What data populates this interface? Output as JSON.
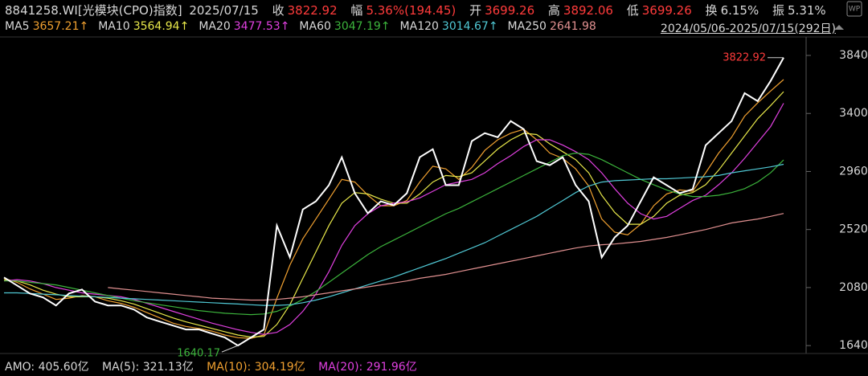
{
  "header": {
    "code": "8841258.WI[光模块(CPO)指数]",
    "date": "2025/07/15",
    "close_label": "收",
    "close": "3822.92",
    "change_label": "幅",
    "change": "5.36%(194.45)",
    "open_label": "开",
    "open": "3699.26",
    "high_label": "高",
    "high": "3892.06",
    "low_label": "低",
    "low": "3699.26",
    "turnover_label": "换",
    "turnover": "6.15%",
    "amplitude_label": "振",
    "amplitude": "5.31%",
    "range": "2024/05/06-2025/07/15(292日)"
  },
  "footer": {
    "amo": "AMO: 405.60亿",
    "ma5": "MA(5): 321.13亿",
    "ma10": "MA(10): 304.19亿",
    "ma20": "MA(20): 291.96亿"
  },
  "chart_data": {
    "type": "line",
    "ylim": [
      1580,
      3980
    ],
    "yticks": [
      1640,
      2080,
      2520,
      2960,
      3400,
      3840
    ],
    "series": [
      {
        "name": "收盘",
        "color": "#ffffff",
        "values": [
          2157,
          2096,
          2035,
          2005,
          1944,
          2035,
          2065,
          1974,
          1944,
          1944,
          1913,
          1853,
          1822,
          1792,
          1762,
          1762,
          1731,
          1701,
          1640.17,
          1701,
          1762,
          2550,
          2309,
          2673,
          2734,
          2856,
          3068,
          2795,
          2643,
          2734,
          2704,
          2795,
          3068,
          3129,
          2856,
          2856,
          3190,
          3251,
          3220,
          3342,
          3281,
          3038,
          3008,
          3068,
          2856,
          2734,
          2309,
          2460,
          2550,
          2734,
          2916,
          2856,
          2795,
          2825,
          3159,
          3251,
          3342,
          3554,
          3493,
          3646,
          3822.92
        ]
      },
      {
        "name": "MA5",
        "color": "#f0a030",
        "last_label": "3657.21↑",
        "values": [
          2150,
          2120,
          2070,
          2030,
          1990,
          2000,
          2020,
          2010,
          1980,
          1960,
          1930,
          1890,
          1850,
          1810,
          1785,
          1770,
          1750,
          1720,
          1700,
          1695,
          1720,
          2000,
          2250,
          2450,
          2600,
          2750,
          2900,
          2880,
          2780,
          2700,
          2700,
          2740,
          2880,
          3000,
          2980,
          2900,
          2990,
          3120,
          3200,
          3250,
          3280,
          3200,
          3100,
          3060,
          2980,
          2850,
          2600,
          2500,
          2480,
          2560,
          2700,
          2790,
          2820,
          2810,
          2950,
          3100,
          3220,
          3380,
          3480,
          3570,
          3657.21
        ]
      },
      {
        "name": "MA10",
        "color": "#e8e84a",
        "last_label": "3564.94↑",
        "values": [
          2140,
          2130,
          2100,
          2060,
          2030,
          2010,
          2010,
          2010,
          2000,
          1980,
          1955,
          1920,
          1885,
          1850,
          1820,
          1795,
          1770,
          1745,
          1720,
          1705,
          1710,
          1800,
          1950,
          2150,
          2350,
          2550,
          2720,
          2800,
          2790,
          2750,
          2720,
          2720,
          2790,
          2880,
          2930,
          2920,
          2950,
          3040,
          3130,
          3200,
          3250,
          3240,
          3170,
          3110,
          3050,
          2950,
          2780,
          2650,
          2560,
          2560,
          2620,
          2720,
          2780,
          2800,
          2860,
          2970,
          3100,
          3230,
          3360,
          3460,
          3564.94
        ]
      },
      {
        "name": "MA20",
        "color": "#e040e0",
        "last_label": "3477.53↑",
        "values": [
          2130,
          2140,
          2130,
          2110,
          2080,
          2060,
          2040,
          2030,
          2020,
          2010,
          1990,
          1960,
          1930,
          1900,
          1870,
          1840,
          1810,
          1785,
          1760,
          1740,
          1725,
          1740,
          1800,
          1900,
          2030,
          2200,
          2400,
          2550,
          2640,
          2700,
          2720,
          2730,
          2760,
          2810,
          2860,
          2880,
          2900,
          2950,
          3020,
          3080,
          3150,
          3200,
          3200,
          3160,
          3110,
          3050,
          2950,
          2830,
          2720,
          2640,
          2600,
          2620,
          2680,
          2740,
          2780,
          2860,
          2950,
          3060,
          3180,
          3300,
          3477.53
        ]
      },
      {
        "name": "MA60",
        "color": "#3cb43c",
        "last_label": "3047.19↑",
        "values": [
          2130,
          2130,
          2120,
          2110,
          2100,
          2080,
          2060,
          2040,
          2020,
          2000,
          1980,
          1965,
          1950,
          1935,
          1920,
          1905,
          1895,
          1885,
          1880,
          1875,
          1880,
          1900,
          1940,
          1990,
          2050,
          2120,
          2190,
          2260,
          2330,
          2390,
          2440,
          2490,
          2540,
          2590,
          2640,
          2680,
          2730,
          2780,
          2830,
          2880,
          2930,
          2980,
          3030,
          3080,
          3100,
          3090,
          3050,
          3000,
          2950,
          2900,
          2860,
          2820,
          2790,
          2770,
          2770,
          2780,
          2800,
          2830,
          2880,
          2950,
          3047.19
        ]
      },
      {
        "name": "MA120",
        "color": "#50c8d4",
        "last_label": "3014.67↑",
        "values": [
          2040,
          2040,
          2035,
          2030,
          2025,
          2020,
          2015,
          2010,
          2005,
          2000,
          1995,
          1990,
          1985,
          1980,
          1975,
          1970,
          1965,
          1960,
          1955,
          1950,
          1945,
          1945,
          1950,
          1965,
          1985,
          2010,
          2040,
          2070,
          2100,
          2130,
          2160,
          2195,
          2230,
          2265,
          2300,
          2340,
          2380,
          2420,
          2470,
          2520,
          2570,
          2620,
          2680,
          2740,
          2800,
          2850,
          2880,
          2890,
          2895,
          2900,
          2905,
          2905,
          2910,
          2915,
          2920,
          2930,
          2950,
          2965,
          2980,
          2995,
          3014.67
        ]
      },
      {
        "name": "MA250",
        "color": "#e09090",
        "last_label": "2641.98",
        "values": [
          null,
          null,
          null,
          null,
          null,
          null,
          null,
          null,
          2080,
          2070,
          2060,
          2050,
          2040,
          2030,
          2020,
          2010,
          2000,
          1995,
          1990,
          1985,
          1985,
          1990,
          2000,
          2010,
          2025,
          2040,
          2055,
          2070,
          2085,
          2100,
          2115,
          2130,
          2150,
          2165,
          2180,
          2200,
          2220,
          2240,
          2260,
          2280,
          2300,
          2320,
          2340,
          2360,
          2380,
          2395,
          2405,
          2410,
          2420,
          2430,
          2445,
          2460,
          2480,
          2500,
          2520,
          2545,
          2570,
          2585,
          2600,
          2620,
          2641.98
        ]
      }
    ]
  }
}
